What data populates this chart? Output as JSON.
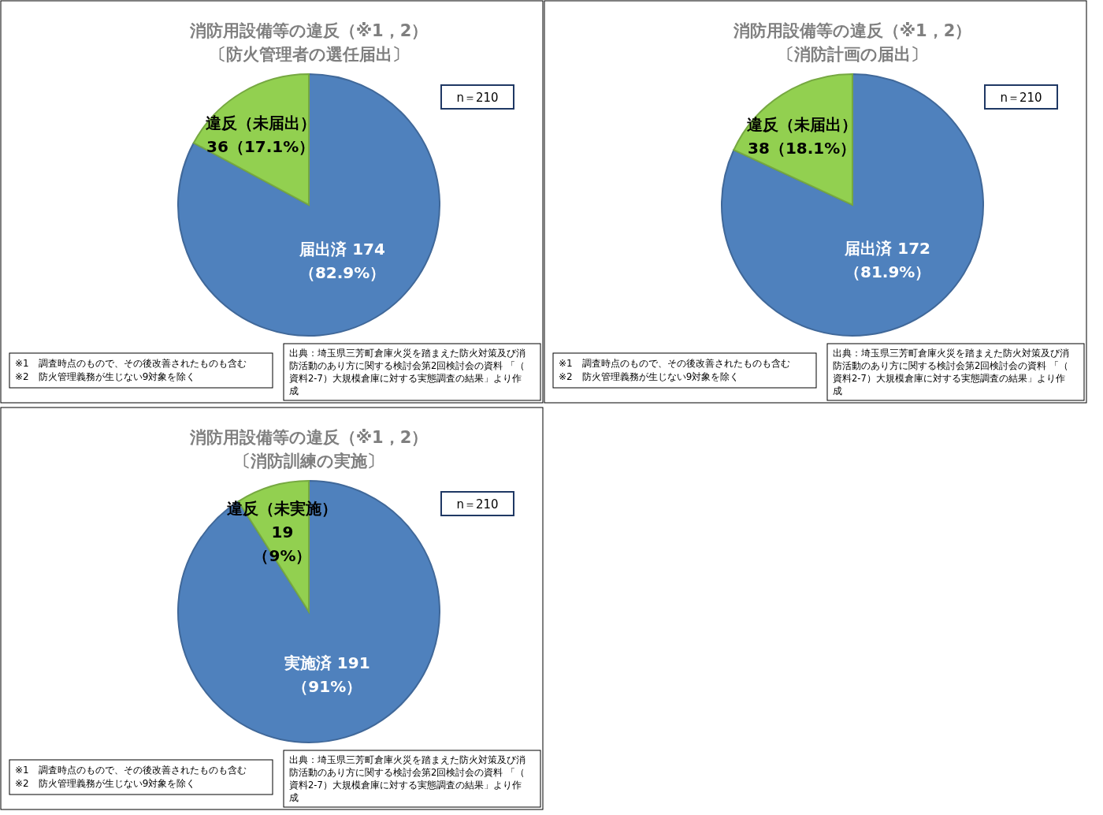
{
  "chart_data": [
    {
      "type": "pie",
      "title": "消防用設備等の違反（※1，2）",
      "subtitle": "〔防火管理者の選任届出〕",
      "categories": [
        "届出済",
        "違反（未届出）"
      ],
      "values": [
        174,
        36
      ],
      "colors": [
        "#4f81bd",
        "#92d050"
      ],
      "value_labels": [
        "174\n（82.9%）",
        "36（17.1%）"
      ],
      "annotations": [
        "n＝210",
        "※1　調査時点のもので、その後改善されたものも含む\n※2　防火管理義務が生じない9対象を除く",
        "出典：埼玉県三芳町倉庫火災を踏まえた防火対策及び消防活動のあり方に関する検討会第2回検討会の資料 「（資料2-7）大規模倉庫に対する実態調査の結果」より作成"
      ]
    },
    {
      "type": "pie",
      "title": "消防用設備等の違反（※1，2）",
      "subtitle": "〔消防計画の届出〕",
      "categories": [
        "届出済",
        "違反（未届出）"
      ],
      "values": [
        172,
        38
      ],
      "colors": [
        "#4f81bd",
        "#92d050"
      ],
      "value_labels": [
        "172\n（81.9%）",
        "38（18.1%）"
      ],
      "annotations": [
        "n＝210",
        "※1　調査時点のもので、その後改善されたものも含む\n※2　防火管理義務が生じない9対象を除く",
        "出典：埼玉県三芳町倉庫火災を踏まえた防火対策及び消防活動のあり方に関する検討会第2回検討会の資料 「（資料2-7）大規模倉庫に対する実態調査の結果」より作成"
      ]
    },
    {
      "type": "pie",
      "title": "消防用設備等の違反（※1，2）",
      "subtitle": "〔消防訓練の実施〕",
      "categories": [
        "実施済",
        "違反（未実施）"
      ],
      "values": [
        191,
        19
      ],
      "colors": [
        "#4f81bd",
        "#92d050"
      ],
      "value_labels": [
        "191\n（91%）",
        "19\n（9%）"
      ],
      "annotations": [
        "n＝210",
        "※1　調査時点のもので、その後改善されたものも含む\n※2　防火管理義務が生じない9対象を除く",
        "出典：埼玉県三芳町倉庫火災を踏まえた防火対策及び消防活動のあり方に関する検討会第2回検討会の資料 「（資料2-7）大規模倉庫に対する実態調査の結果」より作成"
      ]
    }
  ]
}
